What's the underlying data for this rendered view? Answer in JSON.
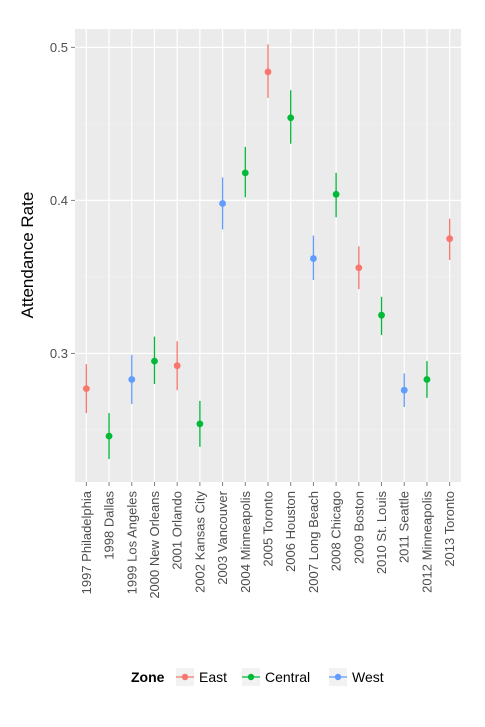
{
  "chart_data": {
    "type": "scatter",
    "title": "",
    "xlabel": "",
    "ylabel": "Attendance Rate",
    "ylim": [
      0.216,
      0.512
    ],
    "y_ticks": [
      0.3,
      0.4,
      0.5
    ],
    "y_tick_labels": [
      "0.3",
      "0.4",
      "0.5"
    ],
    "grid": true,
    "legend_position": "bottom",
    "legend_title": "Zone",
    "categories": [
      "1997 Philadelphia",
      "1998 Dallas",
      "1999 Los Angeles",
      "2000 New Orleans",
      "2001 Orlando",
      "2002 Kansas City",
      "2003 Vancouver",
      "2004 Minneapolis",
      "2005 Toronto",
      "2006 Houston",
      "2007 Long Beach",
      "2008 Chicago",
      "2009 Boston",
      "2010 St. Louis",
      "2011 Seattle",
      "2012 Minneapolis",
      "2013 Toronto"
    ],
    "series": [
      {
        "name": "East",
        "color": "#F8766D",
        "points": [
          {
            "category": "1997 Philadelphia",
            "y": 0.277,
            "low": 0.261,
            "high": 0.293
          },
          {
            "category": "2001 Orlando",
            "y": 0.292,
            "low": 0.276,
            "high": 0.308
          },
          {
            "category": "2005 Toronto",
            "y": 0.484,
            "low": 0.467,
            "high": 0.502
          },
          {
            "category": "2009 Boston",
            "y": 0.356,
            "low": 0.342,
            "high": 0.37
          },
          {
            "category": "2013 Toronto",
            "y": 0.375,
            "low": 0.361,
            "high": 0.388
          }
        ]
      },
      {
        "name": "Central",
        "color": "#00BA38",
        "points": [
          {
            "category": "1998 Dallas",
            "y": 0.246,
            "low": 0.231,
            "high": 0.261
          },
          {
            "category": "2000 New Orleans",
            "y": 0.295,
            "low": 0.28,
            "high": 0.311
          },
          {
            "category": "2002 Kansas City",
            "y": 0.254,
            "low": 0.239,
            "high": 0.269
          },
          {
            "category": "2004 Minneapolis",
            "y": 0.418,
            "low": 0.402,
            "high": 0.435
          },
          {
            "category": "2006 Houston",
            "y": 0.454,
            "low": 0.437,
            "high": 0.472
          },
          {
            "category": "2008 Chicago",
            "y": 0.404,
            "low": 0.389,
            "high": 0.418
          },
          {
            "category": "2010 St. Louis",
            "y": 0.325,
            "low": 0.312,
            "high": 0.337
          },
          {
            "category": "2012 Minneapolis",
            "y": 0.283,
            "low": 0.271,
            "high": 0.295
          }
        ]
      },
      {
        "name": "West",
        "color": "#619CFF",
        "points": [
          {
            "category": "1999 Los Angeles",
            "y": 0.283,
            "low": 0.267,
            "high": 0.299
          },
          {
            "category": "2003 Vancouver",
            "y": 0.398,
            "low": 0.381,
            "high": 0.415
          },
          {
            "category": "2007 Long Beach",
            "y": 0.362,
            "low": 0.348,
            "high": 0.377
          },
          {
            "category": "2011 Seattle",
            "y": 0.276,
            "low": 0.265,
            "high": 0.287
          }
        ]
      }
    ]
  }
}
